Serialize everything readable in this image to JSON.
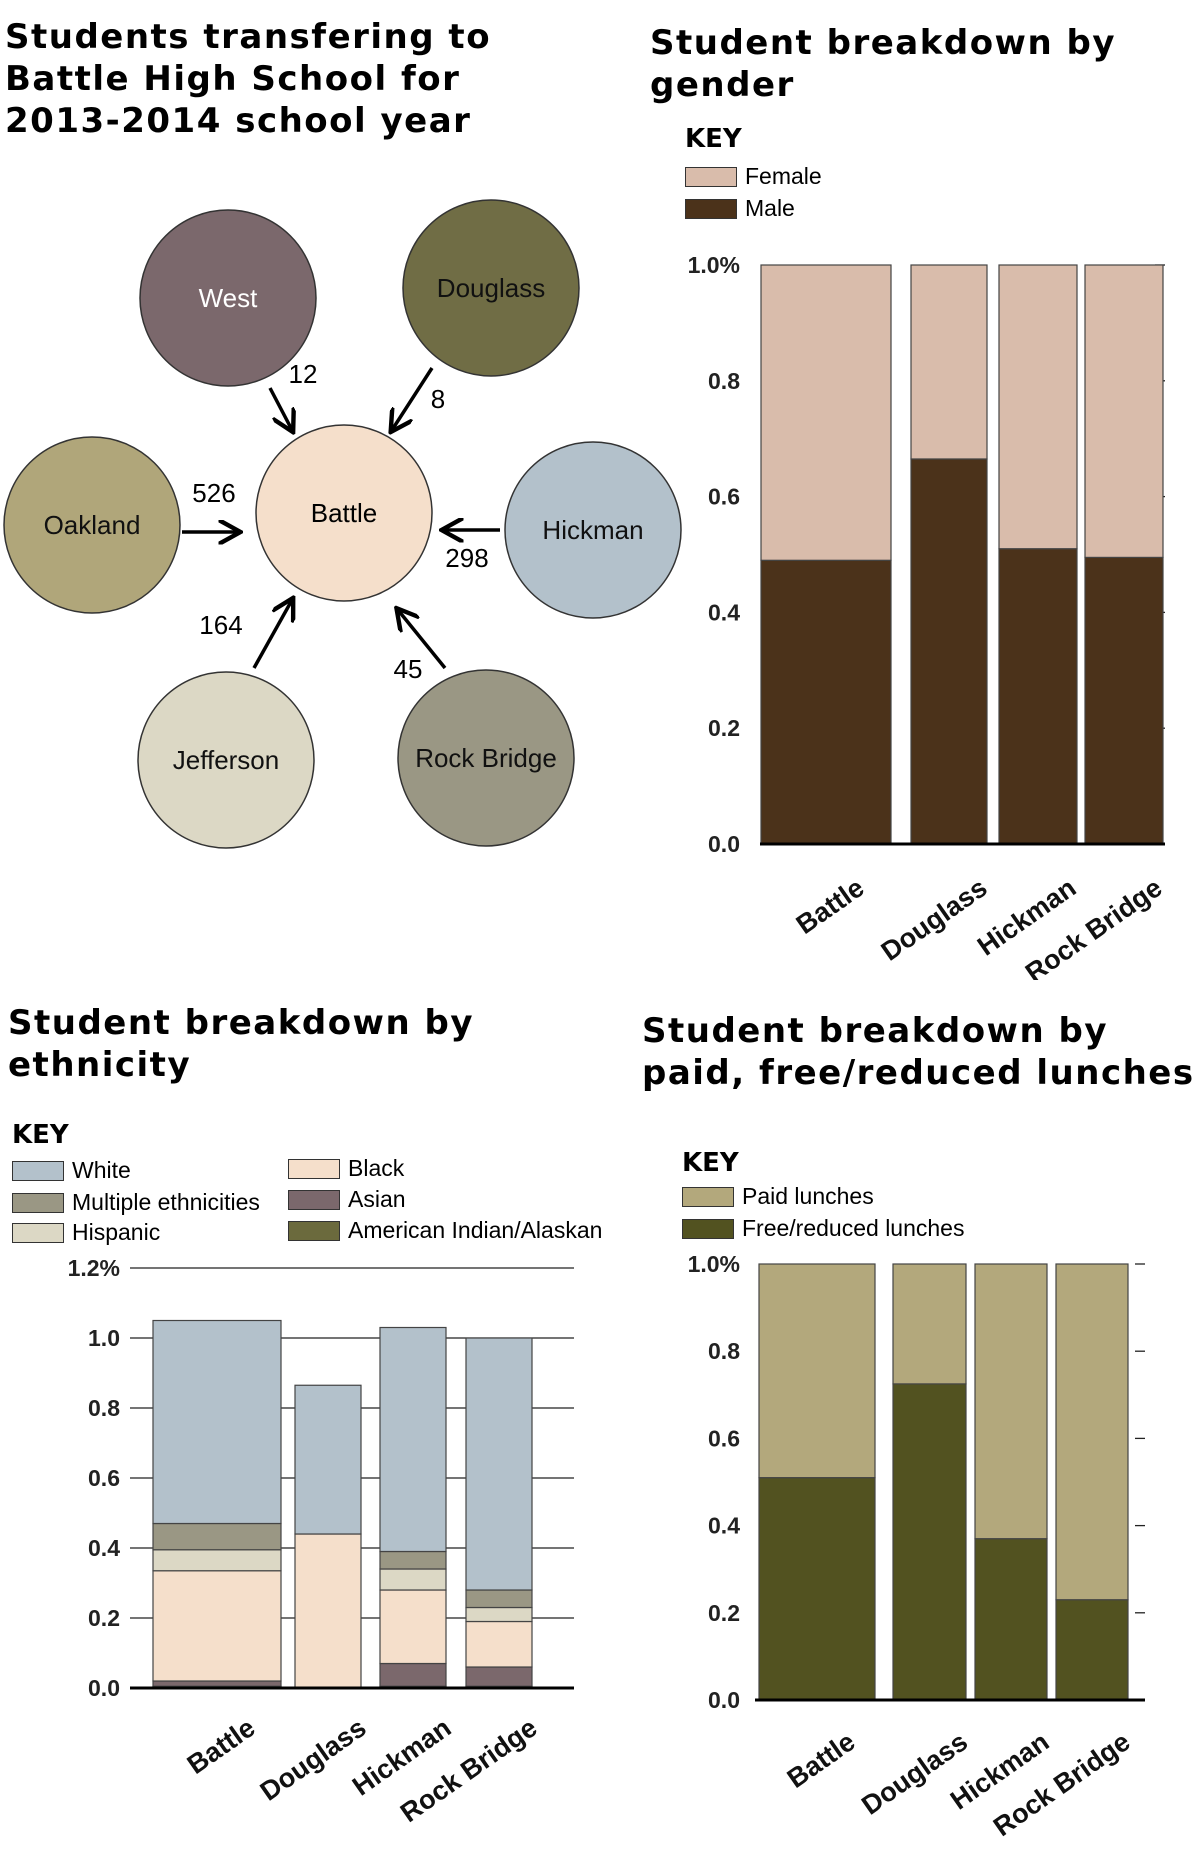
{
  "chart_data": [
    {
      "type": "diagram",
      "title": "Students transfering to Battle High School for 2013-2014 school year",
      "center": {
        "name": "Battle",
        "color": "#f5dfcb"
      },
      "schools": [
        {
          "name": "West",
          "count": "12",
          "color": "#7b686c"
        },
        {
          "name": "Douglass",
          "count": "8",
          "color": "#706d45"
        },
        {
          "name": "Oakland",
          "count": "526",
          "color": "#b0a67a"
        },
        {
          "name": "Hickman",
          "count": "298",
          "color": "#b3c1cb"
        },
        {
          "name": "Jefferson",
          "count": "164",
          "color": "#dcd8c5"
        },
        {
          "name": "Rock Bridge",
          "count": "45",
          "color": "#9a9784"
        }
      ]
    },
    {
      "type": "bar",
      "stacked": true,
      "title": "Student breakdown by gender",
      "key_title": "KEY",
      "categories": [
        "Battle",
        "Douglass",
        "Hickman",
        "Rock Bridge"
      ],
      "series": [
        {
          "name": "Male",
          "color": "#4b321a",
          "values": [
            0.49,
            0.665,
            0.51,
            0.495
          ]
        },
        {
          "name": "Female",
          "color": "#d9bcab",
          "values": [
            0.51,
            0.335,
            0.49,
            0.505
          ]
        }
      ],
      "ylim": [
        0,
        1.0
      ],
      "yticks": [
        "0.0",
        "0.2",
        "0.4",
        "0.6",
        "0.8",
        "1.0%"
      ]
    },
    {
      "type": "bar",
      "stacked": true,
      "title": "Student breakdown by ethnicity",
      "key_title": "KEY",
      "categories": [
        "Battle",
        "Douglass",
        "Hickman",
        "Rock Bridge"
      ],
      "series": [
        {
          "name": "American Indian/Alaskan",
          "color": "#6b6a3d",
          "values": [
            0.005,
            0,
            0.005,
            0.005
          ]
        },
        {
          "name": "Asian",
          "color": "#7b686c",
          "values": [
            0.015,
            0,
            0.065,
            0.055
          ]
        },
        {
          "name": "Black",
          "color": "#f5dfcb",
          "values": [
            0.315,
            0.44,
            0.21,
            0.13
          ]
        },
        {
          "name": "Hispanic",
          "color": "#dcd8c5",
          "values": [
            0.06,
            0,
            0.06,
            0.04
          ]
        },
        {
          "name": "Multiple ethnicities",
          "color": "#9a9784",
          "values": [
            0.075,
            0,
            0.05,
            0.05
          ]
        },
        {
          "name": "White",
          "color": "#b3c1cb",
          "values": [
            0.58,
            0.425,
            0.64,
            0.72
          ]
        }
      ],
      "ylim": [
        0,
        1.2
      ],
      "yticks": [
        "0.0",
        "0.2",
        "0.4",
        "0.6",
        "0.8",
        "1.0",
        "1.2%"
      ]
    },
    {
      "type": "bar",
      "stacked": true,
      "title": "Student breakdown by paid, free/reduced lunches",
      "key_title": "KEY",
      "categories": [
        "Battle",
        "Douglass",
        "Hickman",
        "Rock Bridge"
      ],
      "series": [
        {
          "name": "Free/reduced lunches",
          "color": "#525220",
          "values": [
            0.51,
            0.725,
            0.37,
            0.23
          ]
        },
        {
          "name": "Paid lunches",
          "color": "#b3a87c",
          "values": [
            0.49,
            0.275,
            0.63,
            0.77
          ]
        }
      ],
      "ylim": [
        0,
        1.0
      ],
      "yticks": [
        "0.0",
        "0.2",
        "0.4",
        "0.6",
        "0.8",
        "1.0%"
      ]
    }
  ]
}
